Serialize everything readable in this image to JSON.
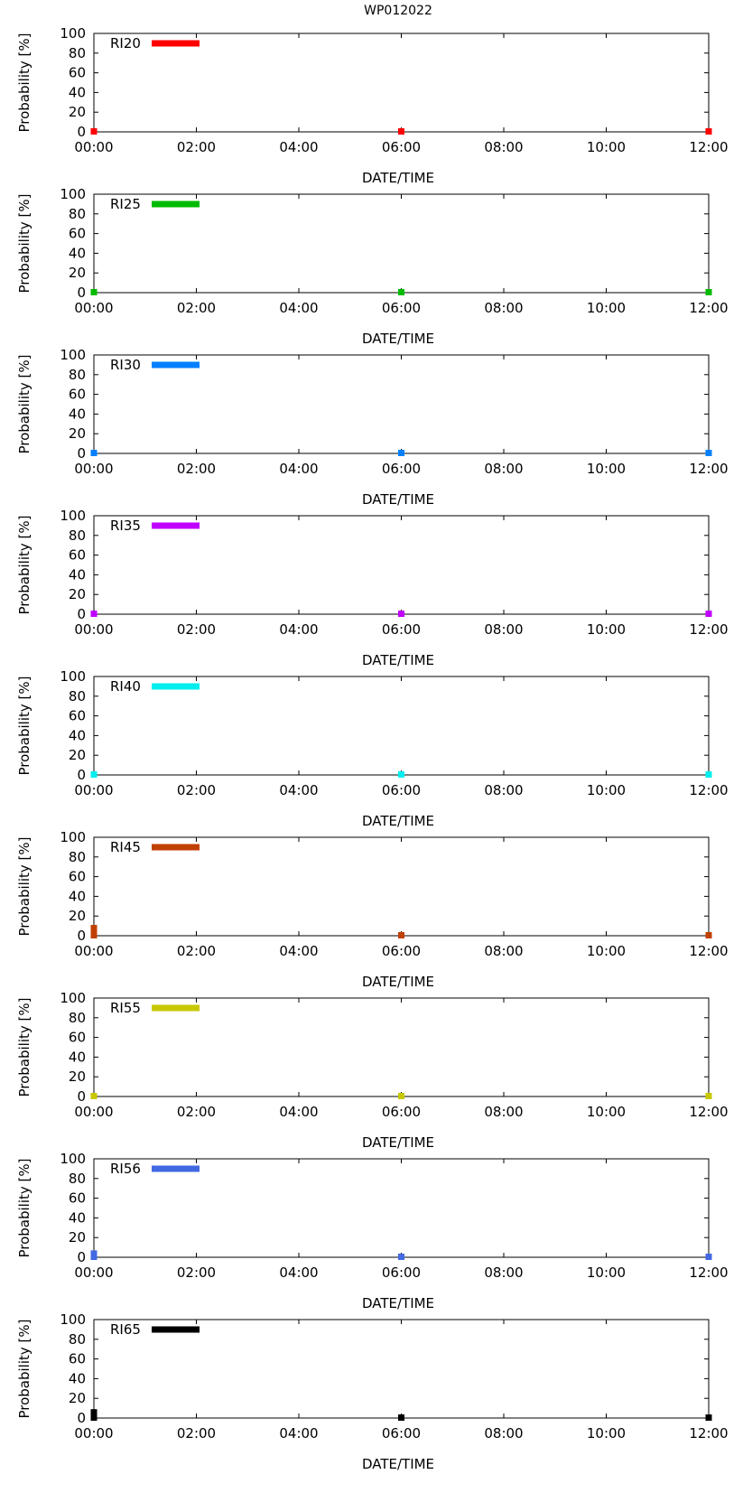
{
  "title": "WP012022",
  "chart_data": [
    {
      "type": "line",
      "series_name": "RI20",
      "color": "#ff0000",
      "x": [
        "00:00",
        "06:00",
        "12:00"
      ],
      "values": [
        0,
        0,
        0
      ],
      "xlabel": "DATE/TIME",
      "ylabel": "Probability [%]",
      "ylim": [
        0,
        100
      ],
      "xticks": [
        "00:00",
        "02:00",
        "04:00",
        "06:00",
        "08:00",
        "10:00",
        "12:00"
      ],
      "yticks": [
        0,
        20,
        40,
        60,
        80,
        100
      ],
      "legend": "top-left"
    },
    {
      "type": "line",
      "series_name": "RI25",
      "color": "#00bb00",
      "x": [
        "00:00",
        "06:00",
        "12:00"
      ],
      "values": [
        3,
        0,
        0
      ],
      "xlabel": "DATE/TIME",
      "ylabel": "Probability [%]",
      "ylim": [
        0,
        100
      ],
      "xticks": [
        "00:00",
        "02:00",
        "04:00",
        "06:00",
        "08:00",
        "10:00",
        "12:00"
      ],
      "yticks": [
        0,
        20,
        40,
        60,
        80,
        100
      ],
      "legend": "top-left"
    },
    {
      "type": "line",
      "series_name": "RI30",
      "color": "#0080ff",
      "x": [
        "00:00",
        "06:00",
        "12:00"
      ],
      "values": [
        1,
        0,
        0
      ],
      "xlabel": "DATE/TIME",
      "ylabel": "Probability [%]",
      "ylim": [
        0,
        100
      ],
      "xticks": [
        "00:00",
        "02:00",
        "04:00",
        "06:00",
        "08:00",
        "10:00",
        "12:00"
      ],
      "yticks": [
        0,
        20,
        40,
        60,
        80,
        100
      ],
      "legend": "top-left"
    },
    {
      "type": "line",
      "series_name": "RI35",
      "color": "#c000ff",
      "x": [
        "00:00",
        "06:00",
        "12:00"
      ],
      "values": [
        0,
        0,
        0
      ],
      "xlabel": "DATE/TIME",
      "ylabel": "Probability [%]",
      "ylim": [
        0,
        100
      ],
      "xticks": [
        "00:00",
        "02:00",
        "04:00",
        "06:00",
        "08:00",
        "10:00",
        "12:00"
      ],
      "yticks": [
        0,
        20,
        40,
        60,
        80,
        100
      ],
      "legend": "top-left"
    },
    {
      "type": "line",
      "series_name": "RI40",
      "color": "#00eeee",
      "x": [
        "00:00",
        "06:00",
        "12:00"
      ],
      "values": [
        0,
        0,
        0
      ],
      "xlabel": "DATE/TIME",
      "ylabel": "Probability [%]",
      "ylim": [
        0,
        100
      ],
      "xticks": [
        "00:00",
        "02:00",
        "04:00",
        "06:00",
        "08:00",
        "10:00",
        "12:00"
      ],
      "yticks": [
        0,
        20,
        40,
        60,
        80,
        100
      ],
      "legend": "top-left"
    },
    {
      "type": "line",
      "series_name": "RI45",
      "color": "#c04000",
      "x": [
        "00:00",
        "06:00",
        "12:00"
      ],
      "values": [
        11,
        0,
        0
      ],
      "xlabel": "DATE/TIME",
      "ylabel": "Probability [%]",
      "ylim": [
        0,
        100
      ],
      "xticks": [
        "00:00",
        "02:00",
        "04:00",
        "06:00",
        "08:00",
        "10:00",
        "12:00"
      ],
      "yticks": [
        0,
        20,
        40,
        60,
        80,
        100
      ],
      "legend": "top-left"
    },
    {
      "type": "line",
      "series_name": "RI55",
      "color": "#c8c800",
      "x": [
        "00:00",
        "06:00",
        "12:00"
      ],
      "values": [
        3,
        0,
        0
      ],
      "xlabel": "DATE/TIME",
      "ylabel": "Probability [%]",
      "ylim": [
        0,
        100
      ],
      "xticks": [
        "00:00",
        "02:00",
        "04:00",
        "06:00",
        "08:00",
        "10:00",
        "12:00"
      ],
      "yticks": [
        0,
        20,
        40,
        60,
        80,
        100
      ],
      "legend": "top-left"
    },
    {
      "type": "line",
      "series_name": "RI56",
      "color": "#4169e1",
      "x": [
        "00:00",
        "06:00",
        "12:00"
      ],
      "values": [
        7,
        0,
        0
      ],
      "xlabel": "DATE/TIME",
      "ylabel": "Probability [%]",
      "ylim": [
        0,
        100
      ],
      "xticks": [
        "00:00",
        "02:00",
        "04:00",
        "06:00",
        "08:00",
        "10:00",
        "12:00"
      ],
      "yticks": [
        0,
        20,
        40,
        60,
        80,
        100
      ],
      "legend": "top-left"
    },
    {
      "type": "line",
      "series_name": "RI65",
      "color": "#000000",
      "x": [
        "00:00",
        "06:00",
        "12:00"
      ],
      "values": [
        9,
        0,
        0
      ],
      "xlabel": "DATE/TIME",
      "ylabel": "Probability [%]",
      "ylim": [
        0,
        100
      ],
      "xticks": [
        "00:00",
        "02:00",
        "04:00",
        "06:00",
        "08:00",
        "10:00",
        "12:00"
      ],
      "yticks": [
        0,
        20,
        40,
        60,
        80,
        100
      ],
      "legend": "top-left"
    }
  ]
}
